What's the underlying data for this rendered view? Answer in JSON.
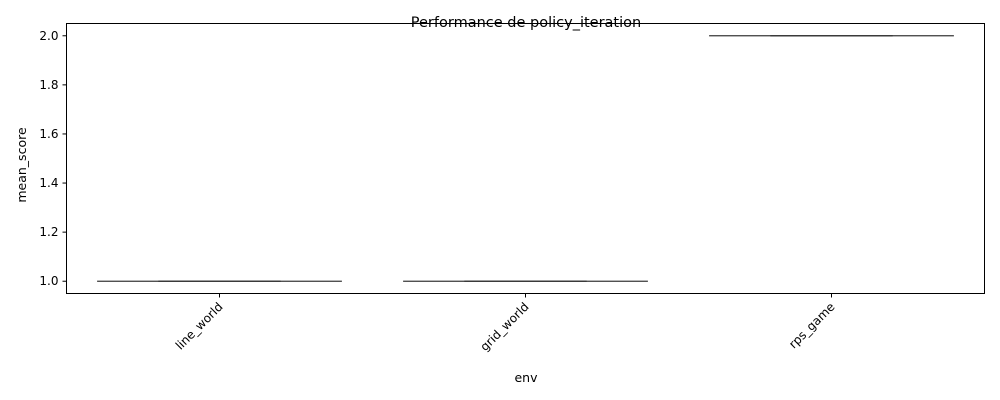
{
  "chart_data": {
    "type": "box",
    "title": "Performance de policy_iteration",
    "xlabel": "env",
    "ylabel": "mean_score",
    "categories": [
      "line_world",
      "grid_world",
      "rps_game"
    ],
    "values": [
      1.0,
      1.0,
      2.0
    ],
    "ylim": [
      0.95,
      2.05
    ],
    "yticks": [
      1.0,
      1.2,
      1.4,
      1.6,
      1.8,
      2.0
    ],
    "ytick_labels": [
      "1.0",
      "1.2",
      "1.4",
      "1.6",
      "1.8",
      "2.0"
    ],
    "xtick_rotation_deg": 45,
    "grid": false,
    "legend": "none",
    "line_color": "#3a3a3a"
  }
}
